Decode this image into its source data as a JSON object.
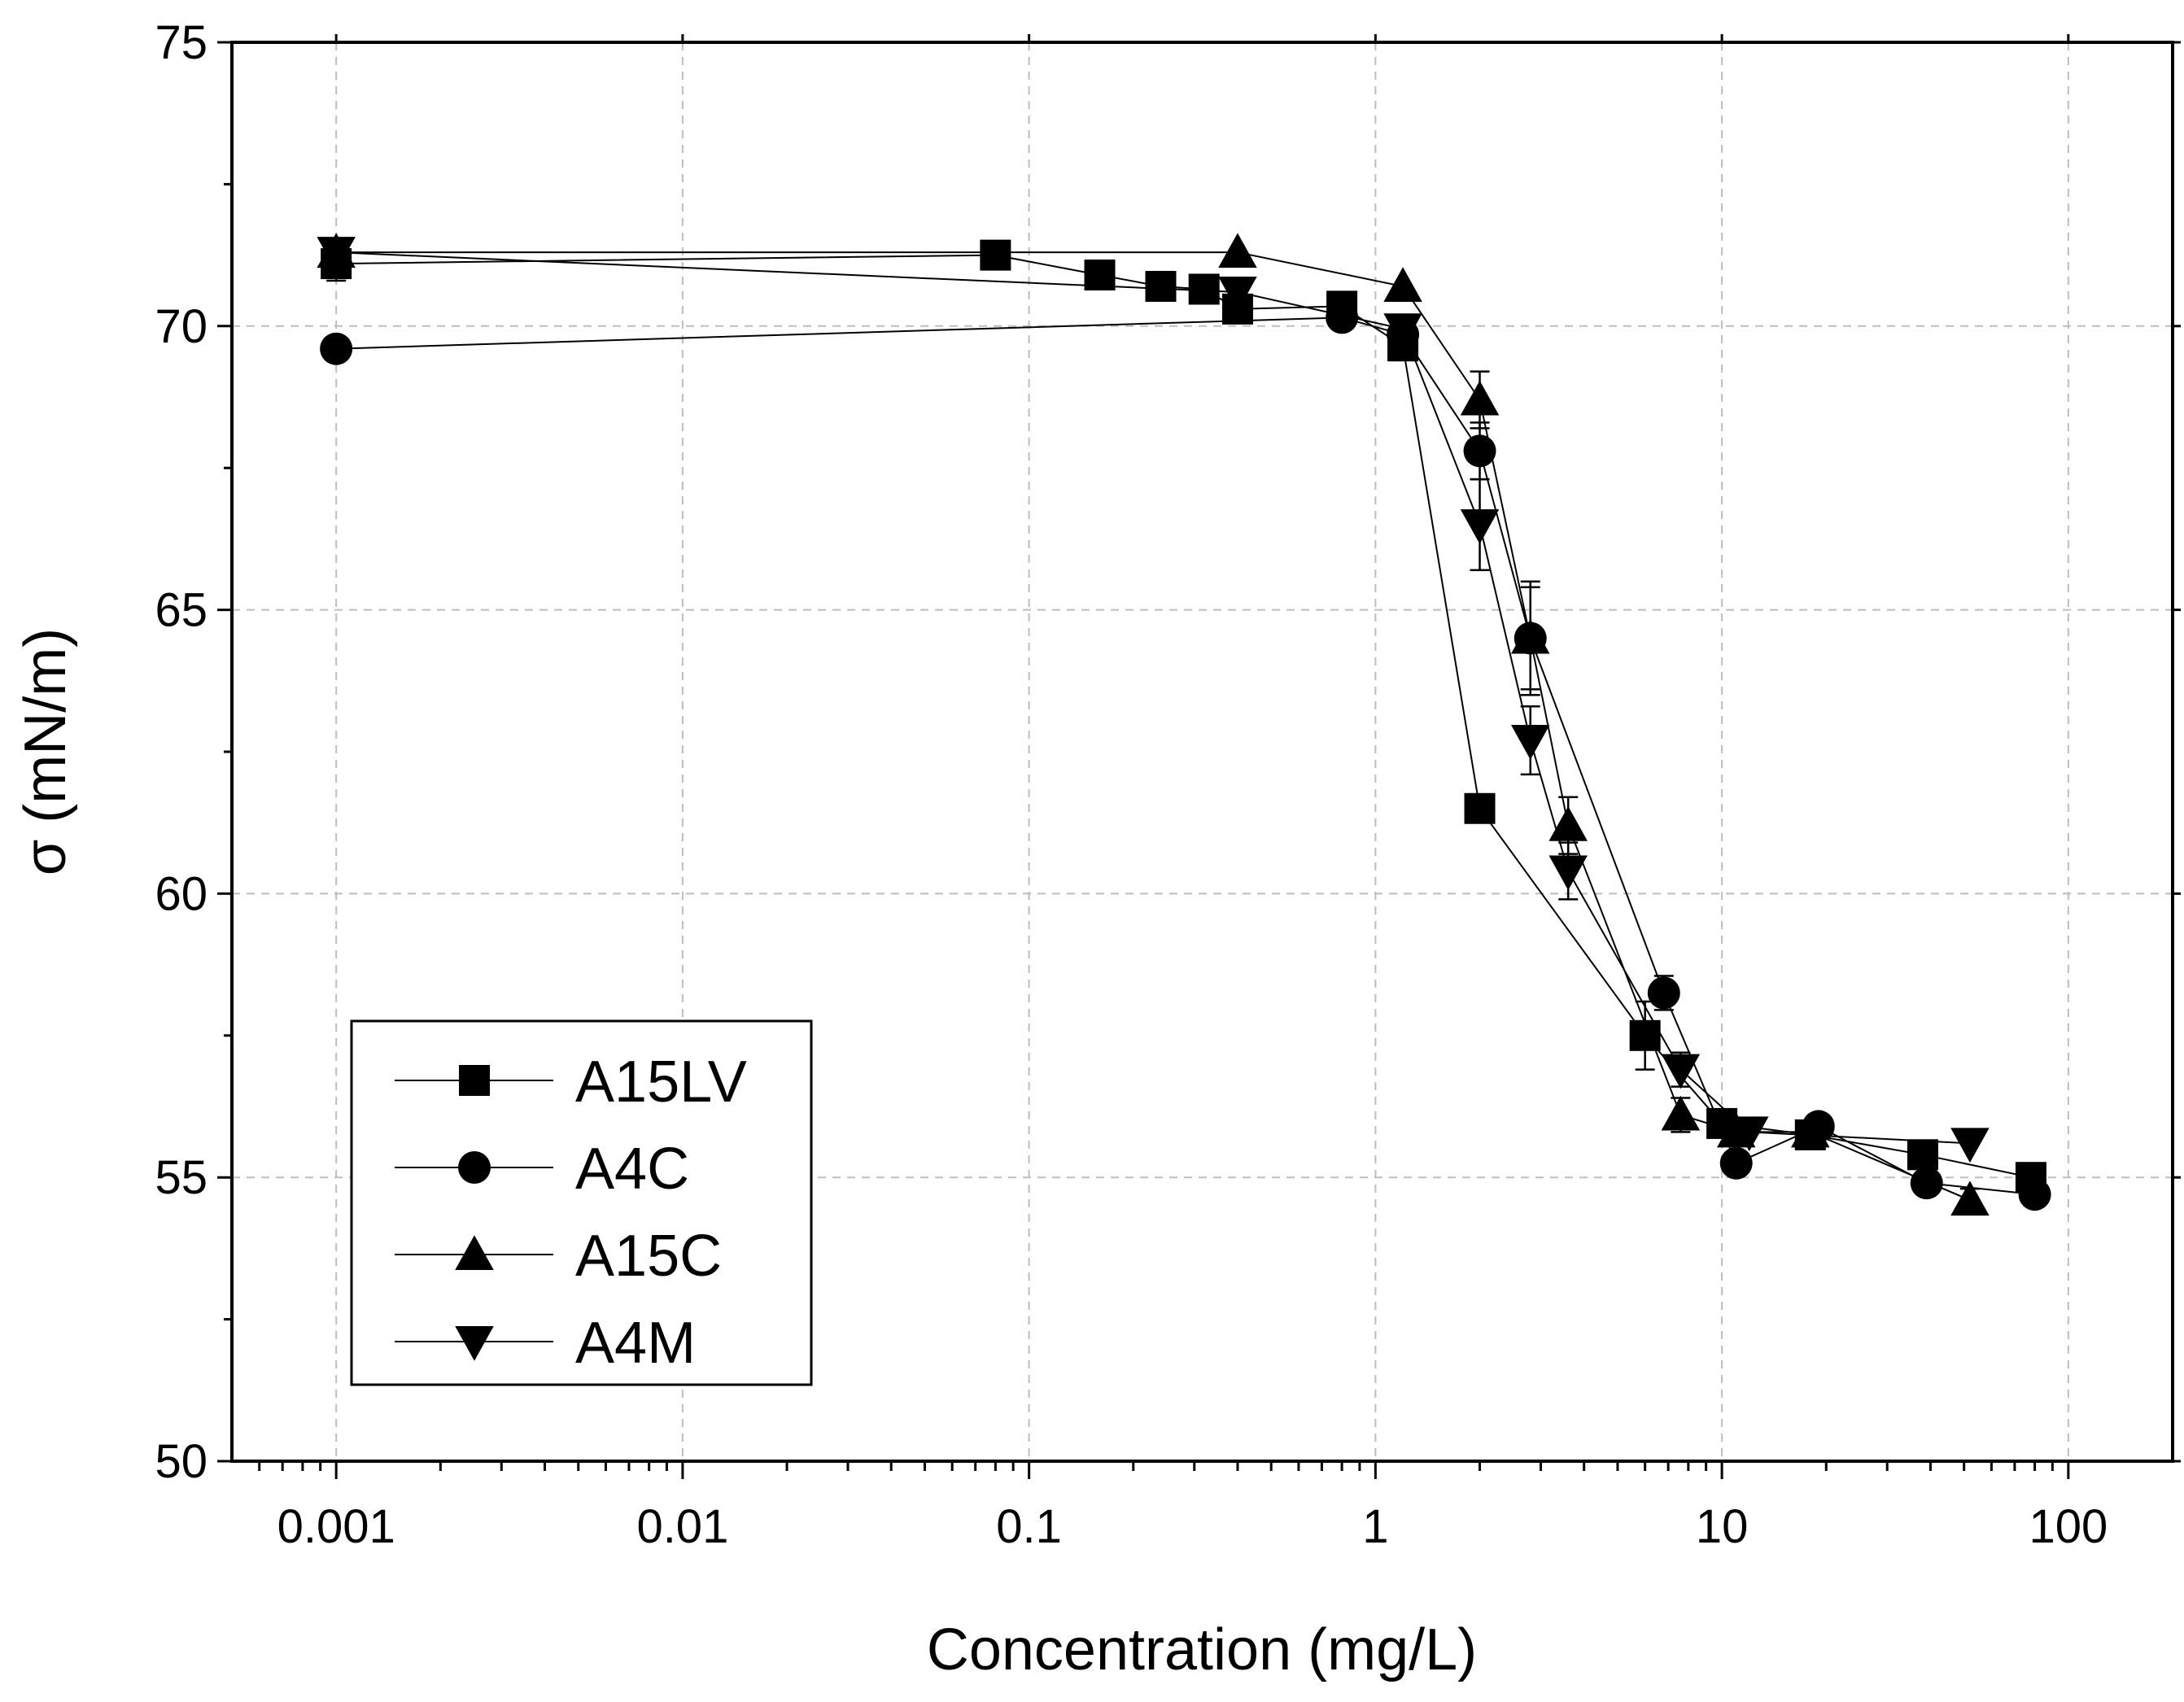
{
  "chart_data": {
    "type": "line",
    "title": "",
    "xlabel": "Concentration (mg/L)",
    "ylabel": "σ (mN/m)",
    "xscale": "log",
    "xlim": [
      0.0005,
      200
    ],
    "ylim": [
      50,
      75
    ],
    "xticks": [
      {
        "value": 0.001,
        "label": "0.001"
      },
      {
        "value": 0.01,
        "label": "0.01"
      },
      {
        "value": 0.1,
        "label": "0.1"
      },
      {
        "value": 1,
        "label": "1"
      },
      {
        "value": 10,
        "label": "10"
      },
      {
        "value": 100,
        "label": "100"
      }
    ],
    "yticks": [
      {
        "value": 50,
        "label": "50"
      },
      {
        "value": 55,
        "label": "55"
      },
      {
        "value": 60,
        "label": "60"
      },
      {
        "value": 65,
        "label": "65"
      },
      {
        "value": 70,
        "label": "70"
      },
      {
        "value": 75,
        "label": "75"
      }
    ],
    "grid": true,
    "legend_position": "bottom-left",
    "series": [
      {
        "name": "A15LV",
        "marker": "square",
        "points": [
          {
            "x": 0.001,
            "y": 71.1,
            "err": 0.3
          },
          {
            "x": 0.08,
            "y": 71.25,
            "err": 0
          },
          {
            "x": 0.16,
            "y": 70.9,
            "err": 0
          },
          {
            "x": 0.24,
            "y": 70.7,
            "err": 0
          },
          {
            "x": 0.32,
            "y": 70.65,
            "err": 0
          },
          {
            "x": 0.4,
            "y": 70.3,
            "err": 0
          },
          {
            "x": 0.8,
            "y": 70.35,
            "err": 0
          },
          {
            "x": 1.2,
            "y": 69.65,
            "err": 0
          },
          {
            "x": 2.0,
            "y": 61.5,
            "err": 0
          },
          {
            "x": 6.0,
            "y": 57.5,
            "err": 0.6
          },
          {
            "x": 10.0,
            "y": 55.95,
            "err": 0.2
          },
          {
            "x": 18.0,
            "y": 55.75,
            "err": 0
          },
          {
            "x": 38.0,
            "y": 55.4,
            "err": 0
          },
          {
            "x": 78.0,
            "y": 55.0,
            "err": 0
          }
        ]
      },
      {
        "name": "A4C",
        "marker": "circle",
        "points": [
          {
            "x": 0.001,
            "y": 69.6,
            "err": 0
          },
          {
            "x": 0.8,
            "y": 70.15,
            "err": 0
          },
          {
            "x": 1.2,
            "y": 69.85,
            "err": 0
          },
          {
            "x": 2.0,
            "y": 67.8,
            "err": 0.5
          },
          {
            "x": 2.8,
            "y": 64.5,
            "err": 1.0
          },
          {
            "x": 6.8,
            "y": 58.25,
            "err": 0.3
          },
          {
            "x": 11.0,
            "y": 55.25,
            "err": 0
          },
          {
            "x": 19.0,
            "y": 55.9,
            "err": 0
          },
          {
            "x": 39.0,
            "y": 54.9,
            "err": 0
          },
          {
            "x": 80.0,
            "y": 54.7,
            "err": 0
          }
        ]
      },
      {
        "name": "A15C",
        "marker": "triangle-up",
        "points": [
          {
            "x": 0.001,
            "y": 71.3,
            "err": 0
          },
          {
            "x": 0.4,
            "y": 71.3,
            "err": 0
          },
          {
            "x": 1.2,
            "y": 70.7,
            "err": 0
          },
          {
            "x": 2.0,
            "y": 68.7,
            "err": 0.5
          },
          {
            "x": 2.8,
            "y": 64.5,
            "err": 0.9
          },
          {
            "x": 3.6,
            "y": 61.2,
            "err": 0.5
          },
          {
            "x": 7.6,
            "y": 56.1,
            "err": 0.3
          },
          {
            "x": 11.0,
            "y": 55.8,
            "err": 0
          },
          {
            "x": 18.0,
            "y": 55.8,
            "err": 0
          },
          {
            "x": 52.0,
            "y": 54.6,
            "err": 0.2
          }
        ]
      },
      {
        "name": "A4M",
        "marker": "triangle-down",
        "points": [
          {
            "x": 0.001,
            "y": 71.3,
            "err": 0
          },
          {
            "x": 0.4,
            "y": 70.6,
            "err": 0
          },
          {
            "x": 1.2,
            "y": 69.95,
            "err": 0
          },
          {
            "x": 2.0,
            "y": 66.5,
            "err": 0.8
          },
          {
            "x": 2.8,
            "y": 62.7,
            "err": 0.6
          },
          {
            "x": 3.6,
            "y": 60.4,
            "err": 0.5
          },
          {
            "x": 7.6,
            "y": 56.9,
            "err": 0.3
          },
          {
            "x": 12.0,
            "y": 55.8,
            "err": 0
          },
          {
            "x": 52.0,
            "y": 55.6,
            "err": 0
          }
        ]
      }
    ]
  }
}
